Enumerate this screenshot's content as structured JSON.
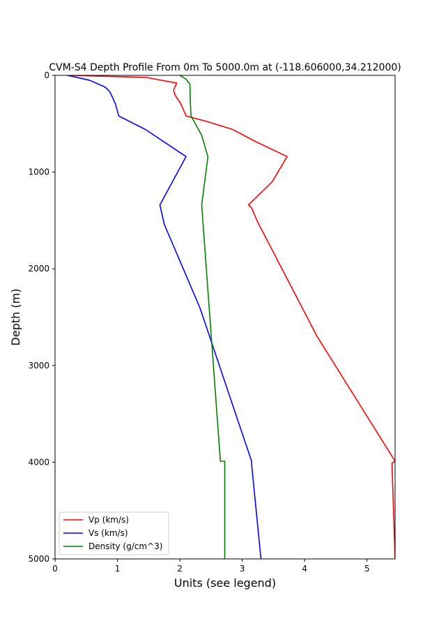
{
  "chart_data": {
    "type": "line",
    "title": "CVM-S4 Depth Profile From 0m To 5000.0m at (-118.606000,34.212000)",
    "xlabel": "Units (see legend)",
    "ylabel": "Depth (m)",
    "xlim": [
      0,
      5.45
    ],
    "ylim": [
      0,
      5000
    ],
    "y_inverted": true,
    "x_ticks": [
      "0",
      "1",
      "2",
      "3",
      "4",
      "5"
    ],
    "y_ticks": [
      "0",
      "1000",
      "2000",
      "3000",
      "4000",
      "5000"
    ],
    "grid": false,
    "legend_position": "lower-left",
    "series": [
      {
        "name": "Vp (km/s)",
        "color": "#ff0000",
        "points": [
          [
            0.22,
            0
          ],
          [
            1.45,
            20
          ],
          [
            1.95,
            80
          ],
          [
            1.9,
            150
          ],
          [
            1.92,
            200
          ],
          [
            2.02,
            300
          ],
          [
            2.1,
            420
          ],
          [
            2.45,
            480
          ],
          [
            2.85,
            560
          ],
          [
            3.2,
            680
          ],
          [
            3.72,
            840
          ],
          [
            3.48,
            1100
          ],
          [
            3.1,
            1340
          ],
          [
            3.15,
            1370
          ],
          [
            3.25,
            1520
          ],
          [
            4.2,
            2700
          ],
          [
            5.45,
            3990
          ],
          [
            5.4,
            4010
          ],
          [
            5.45,
            5000
          ]
        ]
      },
      {
        "name": "Vs (km/s)",
        "color": "#0000ff",
        "points": [
          [
            0.2,
            0
          ],
          [
            0.55,
            50
          ],
          [
            0.8,
            120
          ],
          [
            0.88,
            170
          ],
          [
            0.97,
            300
          ],
          [
            1.02,
            420
          ],
          [
            1.45,
            560
          ],
          [
            2.1,
            840
          ],
          [
            1.68,
            1340
          ],
          [
            1.75,
            1540
          ],
          [
            2.32,
            2400
          ],
          [
            3.15,
            3990
          ],
          [
            3.15,
            4020
          ],
          [
            3.3,
            5000
          ]
        ]
      },
      {
        "name": "Density (g/cm^3)",
        "color": "#008000",
        "points": [
          [
            2.0,
            0
          ],
          [
            2.1,
            40
          ],
          [
            2.16,
            90
          ],
          [
            2.17,
            300
          ],
          [
            2.18,
            420
          ],
          [
            2.35,
            620
          ],
          [
            2.45,
            840
          ],
          [
            2.35,
            1340
          ],
          [
            2.65,
            3990
          ],
          [
            2.72,
            3990
          ],
          [
            2.72,
            5000
          ]
        ]
      }
    ]
  }
}
